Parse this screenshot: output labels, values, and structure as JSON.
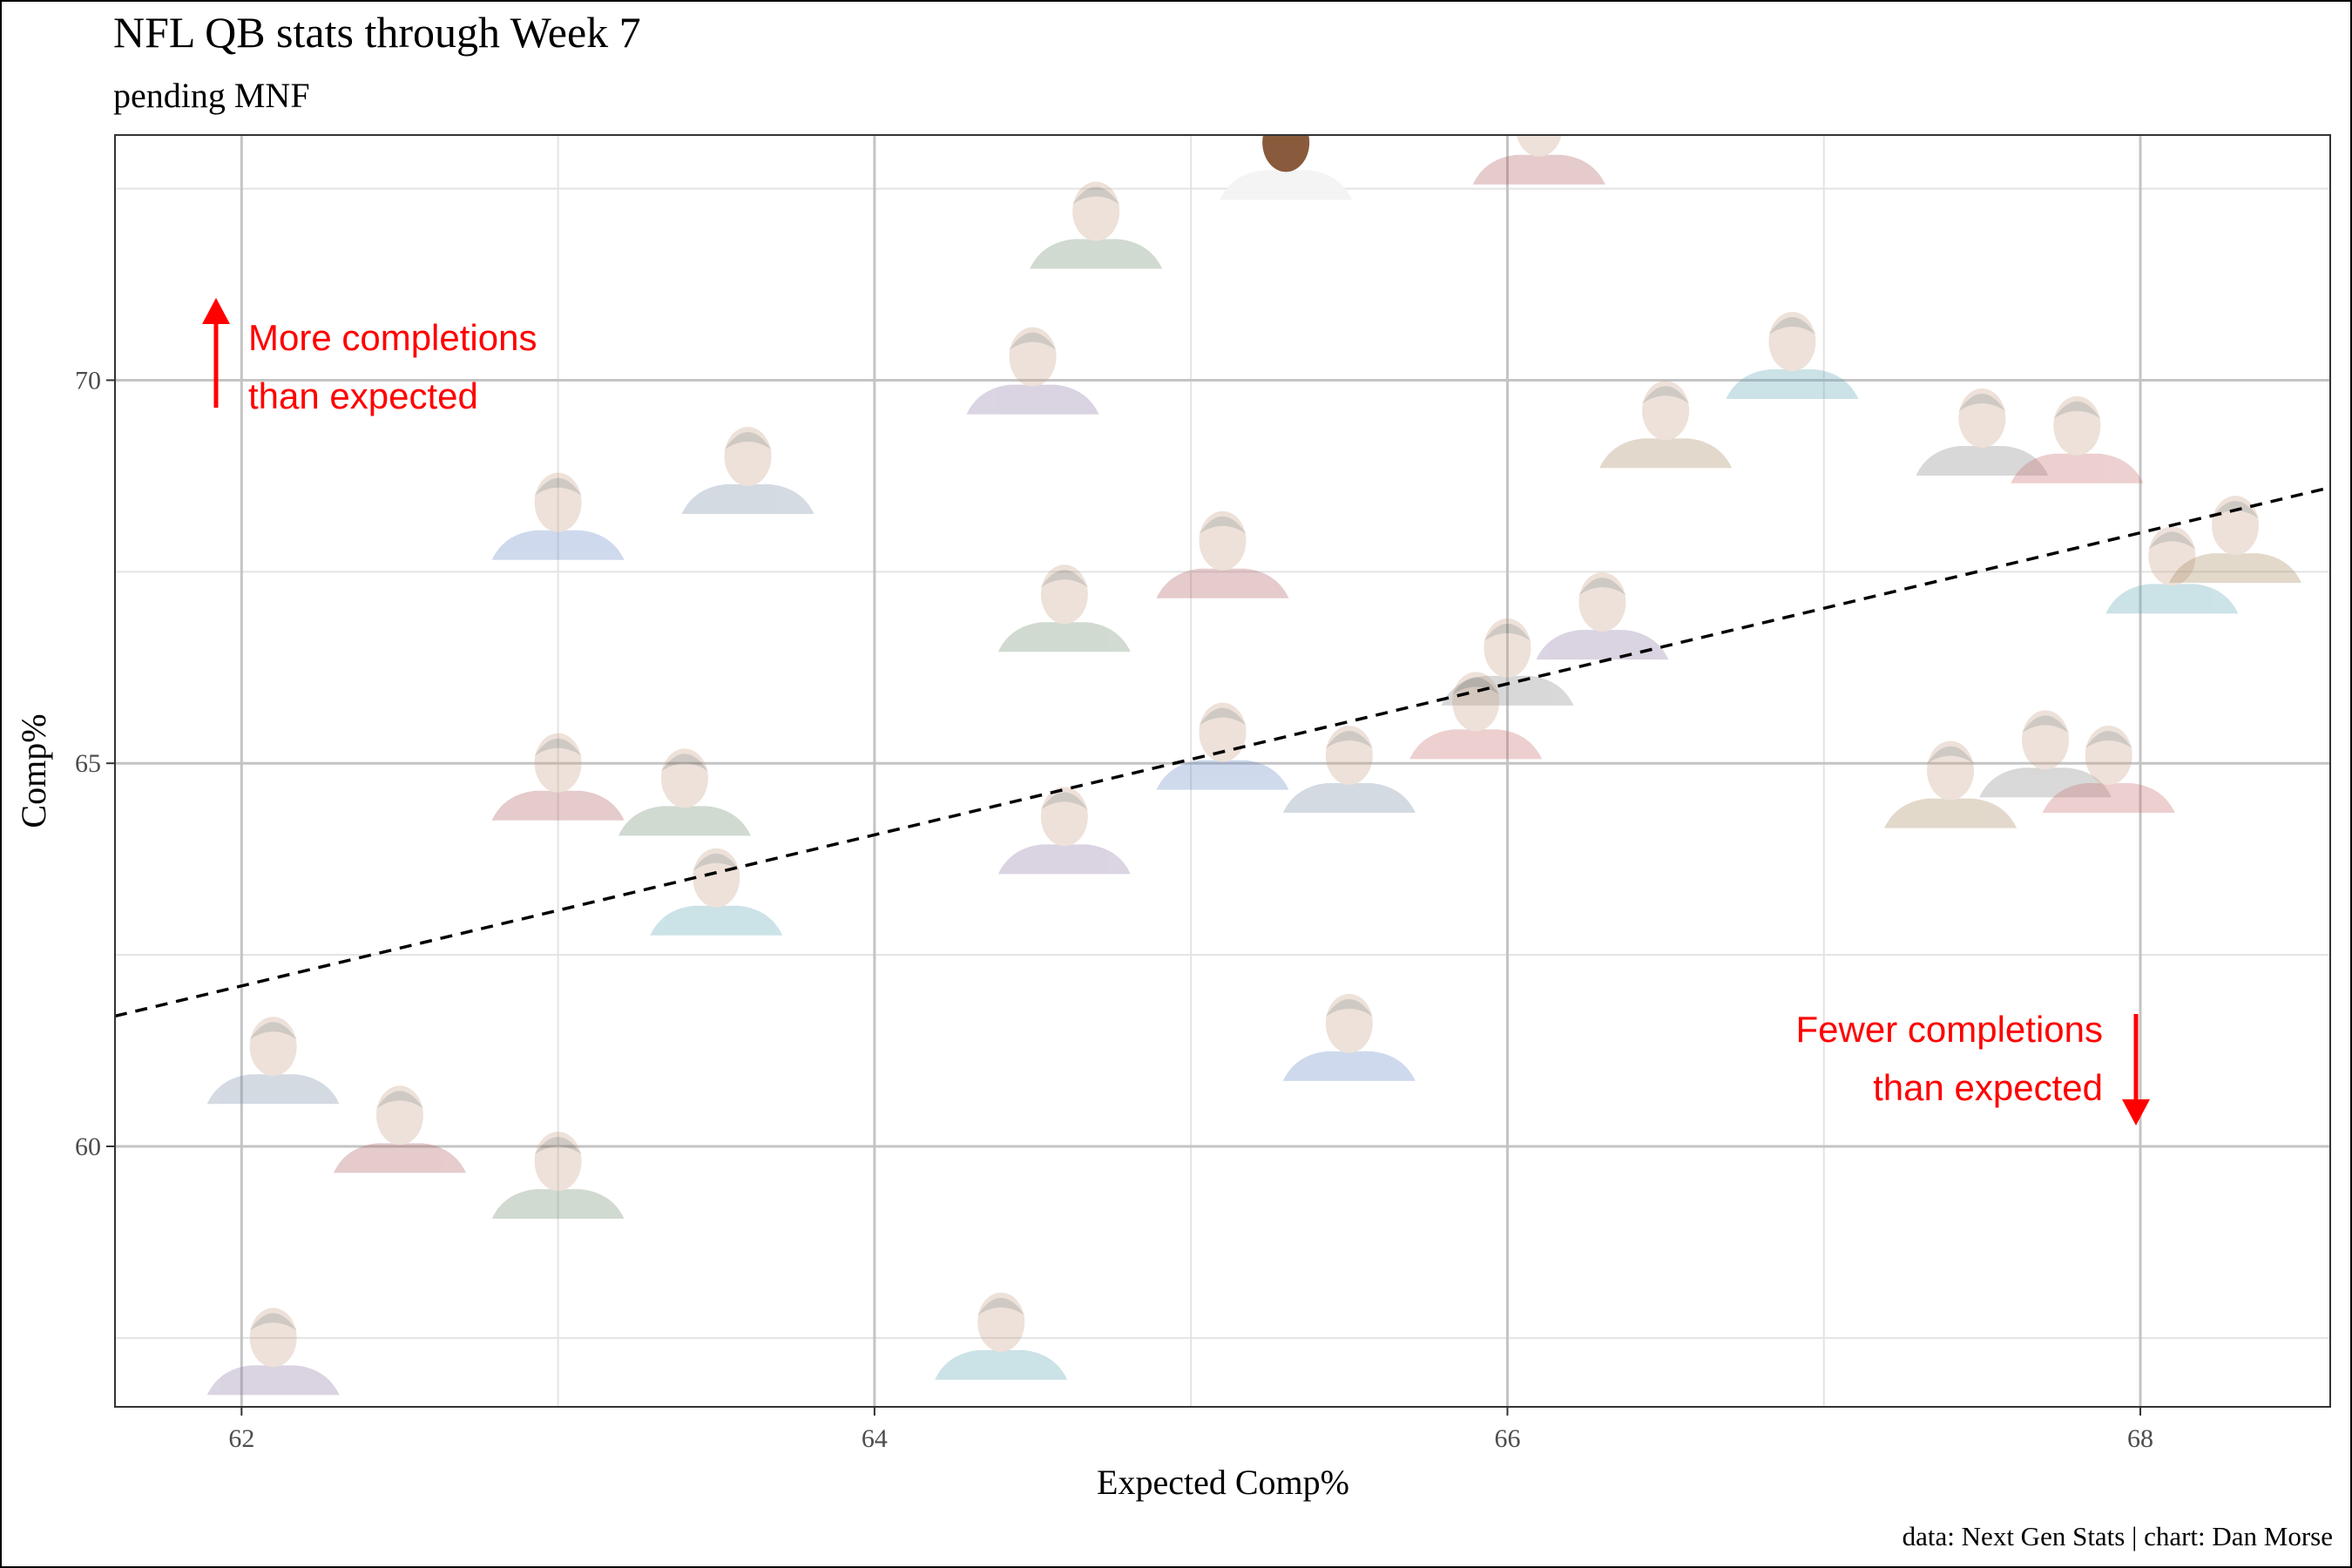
{
  "title": "NFL QB stats through Week 7",
  "subtitle": "pending MNF",
  "caption": "data: Next Gen Stats | chart: Dan Morse",
  "chart_data": {
    "type": "scatter",
    "xlabel": "Expected Comp%",
    "ylabel": "Comp%",
    "xlim": [
      61.6,
      68.6
    ],
    "ylim": [
      56.6,
      73.2
    ],
    "xticks": [
      62,
      64,
      66,
      68
    ],
    "yticks": [
      60,
      65,
      70
    ],
    "grid": true,
    "marker": "player headshot",
    "points": [
      {
        "x": 65.3,
        "y": 72.9,
        "highlighted": true
      },
      {
        "x": 66.1,
        "y": 73.1
      },
      {
        "x": 64.7,
        "y": 72.0
      },
      {
        "x": 64.5,
        "y": 70.1
      },
      {
        "x": 66.9,
        "y": 70.3
      },
      {
        "x": 66.5,
        "y": 69.4
      },
      {
        "x": 67.5,
        "y": 69.3
      },
      {
        "x": 67.8,
        "y": 69.2
      },
      {
        "x": 63.0,
        "y": 68.2
      },
      {
        "x": 63.6,
        "y": 68.8
      },
      {
        "x": 65.1,
        "y": 67.7
      },
      {
        "x": 64.6,
        "y": 67.0
      },
      {
        "x": 66.3,
        "y": 66.9
      },
      {
        "x": 68.1,
        "y": 67.5
      },
      {
        "x": 68.3,
        "y": 67.9
      },
      {
        "x": 66.0,
        "y": 66.3
      },
      {
        "x": 65.9,
        "y": 65.6
      },
      {
        "x": 65.1,
        "y": 65.2
      },
      {
        "x": 65.5,
        "y": 64.9
      },
      {
        "x": 63.0,
        "y": 64.8
      },
      {
        "x": 63.4,
        "y": 64.6
      },
      {
        "x": 64.6,
        "y": 64.1
      },
      {
        "x": 63.5,
        "y": 63.3
      },
      {
        "x": 67.4,
        "y": 64.7
      },
      {
        "x": 67.7,
        "y": 65.1
      },
      {
        "x": 67.9,
        "y": 64.9
      },
      {
        "x": 65.5,
        "y": 61.4
      },
      {
        "x": 62.1,
        "y": 61.1
      },
      {
        "x": 62.5,
        "y": 60.2
      },
      {
        "x": 63.0,
        "y": 59.6
      },
      {
        "x": 62.1,
        "y": 57.3
      },
      {
        "x": 64.4,
        "y": 57.5
      }
    ],
    "trendline": {
      "style": "dashed",
      "x": [
        61.6,
        68.6
      ],
      "y": [
        61.7,
        68.6
      ]
    },
    "annotations": [
      {
        "lines": [
          "More completions",
          "than expected"
        ],
        "arrow": "up",
        "color": "#ff0000"
      },
      {
        "lines": [
          "Fewer completions",
          "than expected"
        ],
        "arrow": "down",
        "color": "#ff0000"
      }
    ]
  }
}
